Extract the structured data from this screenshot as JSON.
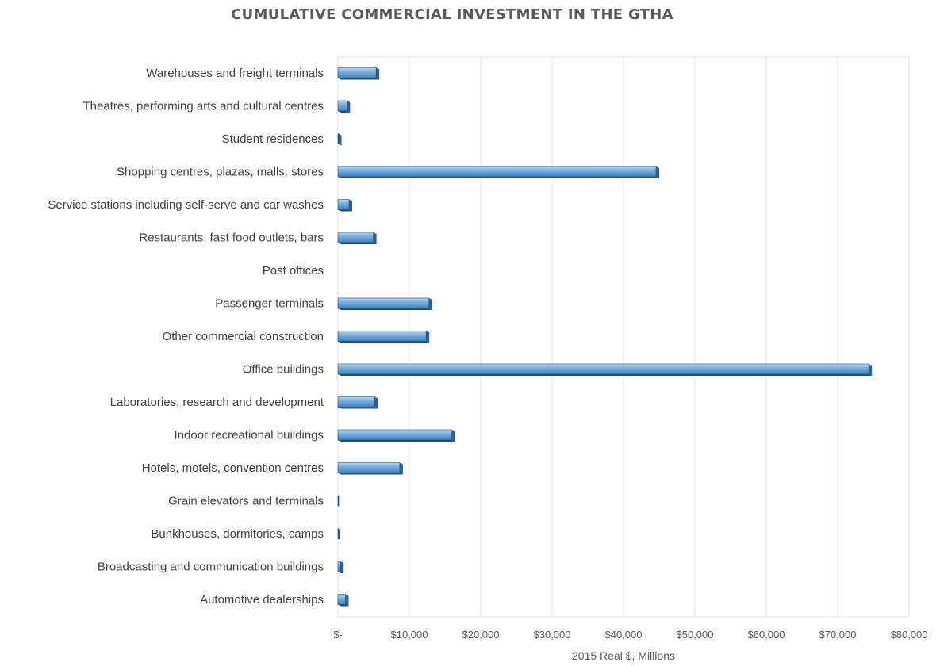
{
  "chart_data": {
    "type": "bar",
    "orientation": "horizontal",
    "title": "CUMULATIVE COMMERCIAL INVESTMENT IN THE GTHA",
    "xlabel": "2015 Real $, Millions",
    "ylabel": "",
    "xlim": [
      0,
      80000
    ],
    "x_ticks": [
      0,
      10000,
      20000,
      30000,
      40000,
      50000,
      60000,
      70000,
      80000
    ],
    "x_tick_labels": [
      "$-",
      "$10,000",
      "$20,000",
      "$30,000",
      "$40,000",
      "$50,000",
      "$60,000",
      "$70,000",
      "$80,000"
    ],
    "grid": true,
    "legend": "none",
    "bar_color": "#5B9BD5",
    "bar_edge_color": "#1F4E79",
    "categories": [
      "Warehouses and freight terminals",
      "Theatres, performing arts and cultural centres",
      "Student residences",
      "Shopping centres, plazas, malls, stores",
      "Service stations including self-serve and car washes",
      "Restaurants, fast food outlets, bars",
      "Post offices",
      "Passenger terminals",
      "Other commercial construction",
      "Office buildings",
      "Laboratories, research and development",
      "Indoor recreational buildings",
      "Hotels, motels, convention centres",
      "Grain elevators and terminals",
      "Bunkhouses, dormitories, camps",
      "Broadcasting and communication buildings",
      "Automotive dealerships"
    ],
    "values": [
      5800,
      1700,
      500,
      45000,
      2000,
      5400,
      50,
      13200,
      12800,
      74800,
      5600,
      16400,
      9100,
      150,
      300,
      800,
      1500
    ]
  }
}
